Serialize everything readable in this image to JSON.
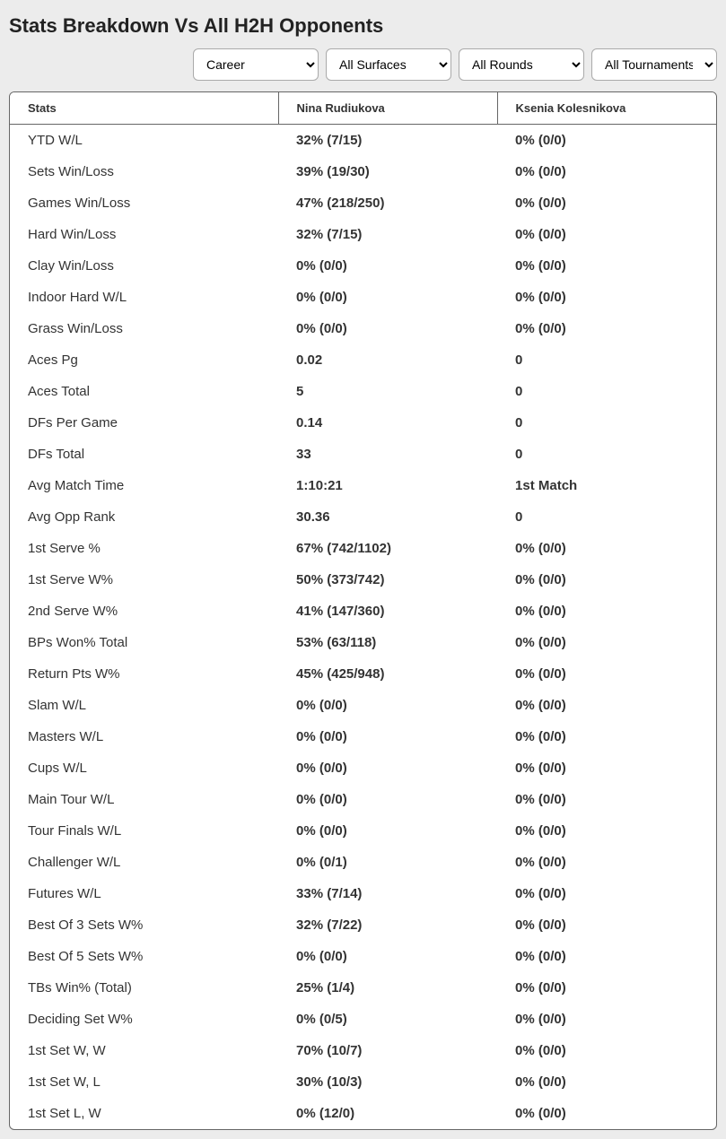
{
  "title": "Stats Breakdown Vs All H2H Opponents",
  "filters": {
    "career": {
      "selected": "Career"
    },
    "surfaces": {
      "selected": "All Surfaces"
    },
    "rounds": {
      "selected": "All Rounds"
    },
    "tournaments": {
      "selected": "All Tournaments"
    }
  },
  "columns": {
    "stats": "Stats",
    "player1": "Nina Rudiukova",
    "player2": "Ksenia Kolesnikova"
  },
  "rows": [
    {
      "stat": "YTD W/L",
      "p1": "32% (7/15)",
      "p2": "0% (0/0)"
    },
    {
      "stat": "Sets Win/Loss",
      "p1": "39% (19/30)",
      "p2": "0% (0/0)"
    },
    {
      "stat": "Games Win/Loss",
      "p1": "47% (218/250)",
      "p2": "0% (0/0)"
    },
    {
      "stat": "Hard Win/Loss",
      "p1": "32% (7/15)",
      "p2": "0% (0/0)"
    },
    {
      "stat": "Clay Win/Loss",
      "p1": "0% (0/0)",
      "p2": "0% (0/0)"
    },
    {
      "stat": "Indoor Hard W/L",
      "p1": "0% (0/0)",
      "p2": "0% (0/0)"
    },
    {
      "stat": "Grass Win/Loss",
      "p1": "0% (0/0)",
      "p2": "0% (0/0)"
    },
    {
      "stat": "Aces Pg",
      "p1": "0.02",
      "p2": "0"
    },
    {
      "stat": "Aces Total",
      "p1": "5",
      "p2": "0"
    },
    {
      "stat": "DFs Per Game",
      "p1": "0.14",
      "p2": "0"
    },
    {
      "stat": "DFs Total",
      "p1": "33",
      "p2": "0"
    },
    {
      "stat": "Avg Match Time",
      "p1": "1:10:21",
      "p2": "1st Match"
    },
    {
      "stat": "Avg Opp Rank",
      "p1": "30.36",
      "p2": "0"
    },
    {
      "stat": "1st Serve %",
      "p1": "67% (742/1102)",
      "p2": "0% (0/0)"
    },
    {
      "stat": "1st Serve W%",
      "p1": "50% (373/742)",
      "p2": "0% (0/0)"
    },
    {
      "stat": "2nd Serve W%",
      "p1": "41% (147/360)",
      "p2": "0% (0/0)"
    },
    {
      "stat": "BPs Won% Total",
      "p1": "53% (63/118)",
      "p2": "0% (0/0)"
    },
    {
      "stat": "Return Pts W%",
      "p1": "45% (425/948)",
      "p2": "0% (0/0)"
    },
    {
      "stat": "Slam W/L",
      "p1": "0% (0/0)",
      "p2": "0% (0/0)"
    },
    {
      "stat": "Masters W/L",
      "p1": "0% (0/0)",
      "p2": "0% (0/0)"
    },
    {
      "stat": "Cups W/L",
      "p1": "0% (0/0)",
      "p2": "0% (0/0)"
    },
    {
      "stat": "Main Tour W/L",
      "p1": "0% (0/0)",
      "p2": "0% (0/0)"
    },
    {
      "stat": "Tour Finals W/L",
      "p1": "0% (0/0)",
      "p2": "0% (0/0)"
    },
    {
      "stat": "Challenger W/L",
      "p1": "0% (0/1)",
      "p2": "0% (0/0)"
    },
    {
      "stat": "Futures W/L",
      "p1": "33% (7/14)",
      "p2": "0% (0/0)"
    },
    {
      "stat": "Best Of 3 Sets W%",
      "p1": "32% (7/22)",
      "p2": "0% (0/0)"
    },
    {
      "stat": "Best Of 5 Sets W%",
      "p1": "0% (0/0)",
      "p2": "0% (0/0)"
    },
    {
      "stat": "TBs Win% (Total)",
      "p1": "25% (1/4)",
      "p2": "0% (0/0)"
    },
    {
      "stat": "Deciding Set W%",
      "p1": "0% (0/5)",
      "p2": "0% (0/0)"
    },
    {
      "stat": "1st Set W, W",
      "p1": "70% (10/7)",
      "p2": "0% (0/0)"
    },
    {
      "stat": "1st Set W, L",
      "p1": "30% (10/3)",
      "p2": "0% (0/0)"
    },
    {
      "stat": "1st Set L, W",
      "p1": "0% (12/0)",
      "p2": "0% (0/0)"
    }
  ]
}
